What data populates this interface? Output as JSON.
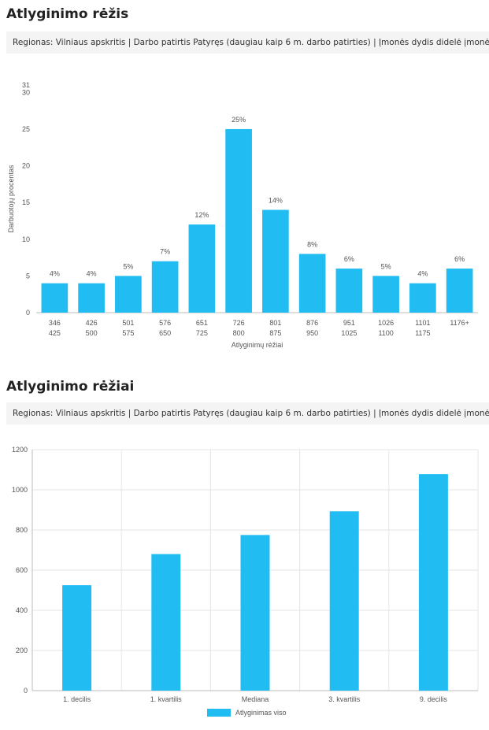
{
  "sections": [
    {
      "title": "Atlyginimo rėžis",
      "filter": "Regionas: Vilniaus apskritis | Darbo patirtis Patyręs (daugiau kaip 6 m. darbo patirties) | Įmonės dydis didelė įmonė"
    },
    {
      "title": "Atlyginimo rėžiai",
      "filter": "Regionas: Vilniaus apskritis | Darbo patirtis Patyręs (daugiau kaip 6 m. darbo patirties) | Įmonės dydis didelė įmonė"
    }
  ],
  "colors": {
    "bar": "#21bdf2",
    "grid": "#e6e6e6",
    "axis": "#bbbbbb",
    "text": "#555555"
  },
  "chart_data": [
    {
      "type": "bar",
      "title": "",
      "xlabel": "Atlyginimų rėžiai",
      "ylabel": "Darbuotojų procentas",
      "ylim": [
        0,
        31
      ],
      "yticks": [
        0,
        5,
        10,
        15,
        20,
        25,
        30,
        31
      ],
      "grid": false,
      "categories": [
        [
          "346",
          "425"
        ],
        [
          "426",
          "500"
        ],
        [
          "501",
          "575"
        ],
        [
          "576",
          "650"
        ],
        [
          "651",
          "725"
        ],
        [
          "726",
          "800"
        ],
        [
          "801",
          "875"
        ],
        [
          "876",
          "950"
        ],
        [
          "951",
          "1025"
        ],
        [
          "1026",
          "1100"
        ],
        [
          "1101",
          "1175"
        ],
        [
          "1176+",
          ""
        ]
      ],
      "values": [
        4,
        4,
        5,
        7,
        12,
        25,
        14,
        8,
        6,
        5,
        4,
        6
      ],
      "data_labels": [
        "4%",
        "4%",
        "5%",
        "7%",
        "12%",
        "25%",
        "14%",
        "8%",
        "6%",
        "5%",
        "4%",
        "6%"
      ]
    },
    {
      "type": "bar",
      "title": "",
      "xlabel": "",
      "ylabel": "",
      "ylim": [
        0,
        1200
      ],
      "yticks": [
        0,
        200,
        400,
        600,
        800,
        1000,
        1200
      ],
      "grid": true,
      "categories": [
        "1. decilis",
        "1. kvartilis",
        "Mediana",
        "3. kvartilis",
        "9. decilis"
      ],
      "series": [
        {
          "name": "Atlyginimas viso",
          "values": [
            525,
            680,
            775,
            893,
            1078
          ]
        }
      ],
      "legend": "bottom"
    }
  ]
}
